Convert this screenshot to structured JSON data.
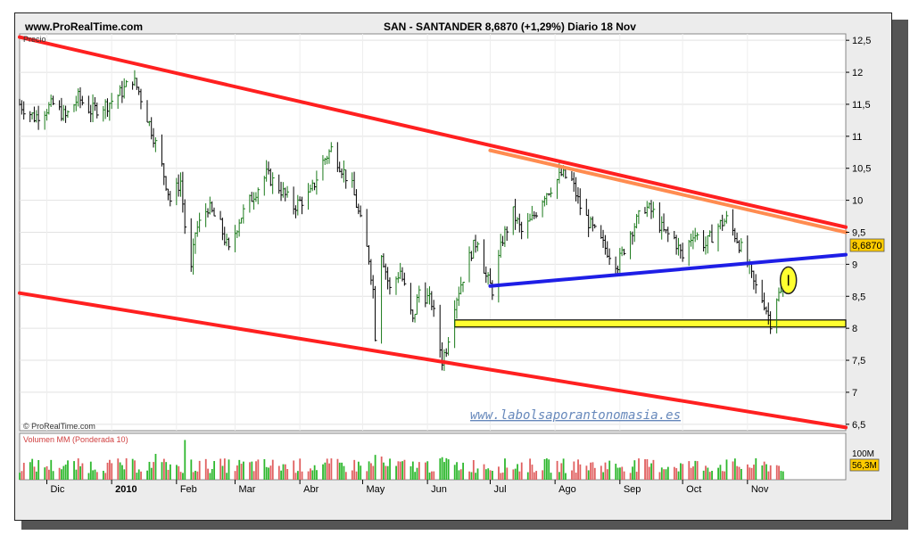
{
  "header": {
    "site": "www.ProRealTime.com",
    "quote": "SAN - SANTANDER    8,6870 (+1,29%)    Diario  18 Nov"
  },
  "chart_data": [
    {
      "type": "line",
      "title": "SAN - SANTANDER",
      "price_label": "Precio",
      "copyright": "© ProRealTime.com",
      "watermark": "www.labolsaporantonomasia.es",
      "last_price_label": "8,6870",
      "ylim": [
        6.4,
        12.6
      ],
      "y_ticks": [
        6.5,
        7,
        7.5,
        8,
        8.5,
        9,
        9.5,
        10,
        10.5,
        11,
        11.5,
        12,
        12.5
      ],
      "y_tick_labels": [
        "6,5",
        "7",
        "7,5",
        "8",
        "8,5",
        "9",
        "9,5",
        "10",
        "10,5",
        "11",
        "11,5",
        "12",
        "12,5"
      ],
      "x_months": [
        {
          "date": "2009-12-01",
          "label": "Dic"
        },
        {
          "date": "2010-01-01",
          "label": "2010",
          "bold": true
        },
        {
          "date": "2010-02-01",
          "label": "Feb"
        },
        {
          "date": "2010-03-01",
          "label": "Mar"
        },
        {
          "date": "2010-04-01",
          "label": "Abr"
        },
        {
          "date": "2010-05-01",
          "label": "May"
        },
        {
          "date": "2010-06-01",
          "label": "Jun"
        },
        {
          "date": "2010-07-01",
          "label": "Jul"
        },
        {
          "date": "2010-08-01",
          "label": "Ago"
        },
        {
          "date": "2010-09-01",
          "label": "Sep"
        },
        {
          "date": "2010-10-01",
          "label": "Oct"
        },
        {
          "date": "2010-11-01",
          "label": "Nov"
        }
      ],
      "xlim": [
        "2009-11-18",
        "2010-12-18"
      ],
      "series": [
        {
          "color": "#000000",
          "points": [
            [
              "2009-11-18",
              11.5
            ],
            [
              "2009-11-25",
              11.3
            ],
            [
              "2009-12-04",
              11.5
            ],
            [
              "2009-12-10",
              11.3
            ],
            [
              "2009-12-16",
              11.6
            ],
            [
              "2009-12-22",
              11.4
            ],
            [
              "2009-12-30",
              11.5
            ],
            [
              "2010-01-06",
              11.7
            ],
            [
              "2010-01-11",
              11.9
            ],
            [
              "2010-01-14",
              11.7
            ],
            [
              "2010-01-18",
              11.3
            ],
            [
              "2010-01-21",
              11.0
            ],
            [
              "2010-01-26",
              10.4
            ],
            [
              "2010-01-29",
              10.0
            ],
            [
              "2010-02-03",
              10.3
            ],
            [
              "2010-02-05",
              9.6
            ],
            [
              "2010-02-08",
              8.9
            ],
            [
              "2010-02-10",
              9.5
            ],
            [
              "2010-02-16",
              9.9
            ],
            [
              "2010-02-22",
              9.6
            ],
            [
              "2010-02-26",
              9.2
            ],
            [
              "2010-03-03",
              9.7
            ],
            [
              "2010-03-10",
              10.1
            ],
            [
              "2010-03-16",
              10.4
            ],
            [
              "2010-03-22",
              10.2
            ],
            [
              "2010-03-29",
              9.9
            ],
            [
              "2010-04-06",
              10.1
            ],
            [
              "2010-04-12",
              10.6
            ],
            [
              "2010-04-16",
              10.8
            ],
            [
              "2010-04-21",
              10.5
            ],
            [
              "2010-04-26",
              10.2
            ],
            [
              "2010-04-29",
              9.8
            ],
            [
              "2010-05-04",
              9.1
            ],
            [
              "2010-05-06",
              8.6
            ],
            [
              "2010-05-07",
              7.9
            ],
            [
              "2010-05-10",
              9.2
            ],
            [
              "2010-05-14",
              8.6
            ],
            [
              "2010-05-19",
              8.9
            ],
            [
              "2010-05-25",
              8.1
            ],
            [
              "2010-05-28",
              8.6
            ],
            [
              "2010-06-03",
              8.4
            ],
            [
              "2010-06-08",
              7.5
            ],
            [
              "2010-06-10",
              7.7
            ],
            [
              "2010-06-14",
              8.4
            ],
            [
              "2010-06-17",
              8.7
            ],
            [
              "2010-06-22",
              9.2
            ],
            [
              "2010-06-25",
              9.4
            ],
            [
              "2010-06-29",
              8.8
            ],
            [
              "2010-07-02",
              8.6
            ],
            [
              "2010-07-07",
              9.4
            ],
            [
              "2010-07-12",
              9.8
            ],
            [
              "2010-07-16",
              9.5
            ],
            [
              "2010-07-21",
              9.7
            ],
            [
              "2010-07-27",
              10.1
            ],
            [
              "2010-07-30",
              10.2
            ],
            [
              "2010-08-04",
              10.4
            ],
            [
              "2010-08-09",
              10.3
            ],
            [
              "2010-08-13",
              9.9
            ],
            [
              "2010-08-18",
              9.6
            ],
            [
              "2010-08-24",
              9.3
            ],
            [
              "2010-08-31",
              9.0
            ],
            [
              "2010-09-06",
              9.5
            ],
            [
              "2010-09-13",
              9.9
            ],
            [
              "2010-09-17",
              9.8
            ],
            [
              "2010-09-22",
              9.5
            ],
            [
              "2010-09-27",
              9.4
            ],
            [
              "2010-10-01",
              9.1
            ],
            [
              "2010-10-06",
              9.5
            ],
            [
              "2010-10-12",
              9.3
            ],
            [
              "2010-10-18",
              9.6
            ],
            [
              "2010-10-22",
              9.7
            ],
            [
              "2010-10-27",
              9.4
            ],
            [
              "2010-11-01",
              9.0
            ],
            [
              "2010-11-04",
              8.7
            ],
            [
              "2010-11-09",
              8.4
            ],
            [
              "2010-11-12",
              8.1
            ],
            [
              "2010-11-15",
              8.5
            ],
            [
              "2010-11-17",
              8.55
            ],
            [
              "2010-11-18",
              8.687
            ]
          ]
        }
      ],
      "trendlines": [
        {
          "name": "upper-channel",
          "color": "#ff2020",
          "width": 4,
          "from": [
            "2009-11-18",
            12.55
          ],
          "to": [
            "2010-12-18",
            9.58
          ]
        },
        {
          "name": "lower-channel",
          "color": "#ff2020",
          "width": 4,
          "from": [
            "2009-11-18",
            8.55
          ],
          "to": [
            "2010-12-18",
            6.45
          ]
        },
        {
          "name": "orange-resistance",
          "color": "#ff8c50",
          "width": 4,
          "from": [
            "2010-07-01",
            10.78
          ],
          "to": [
            "2010-12-18",
            9.5
          ]
        },
        {
          "name": "blue-support",
          "color": "#1e1ee6",
          "width": 4,
          "from": [
            "2010-07-01",
            8.66
          ],
          "to": [
            "2010-12-18",
            9.15
          ]
        }
      ],
      "support_zone": {
        "from": "2010-06-14",
        "to": "2010-12-18",
        "y_low": 8.02,
        "y_high": 8.13,
        "color": "#ffff30"
      },
      "highlight_ellipse": {
        "date": "2010-11-18",
        "y": 8.75,
        "color": "#ffff30"
      },
      "volume": {
        "title": "Volumen MM (Ponderada 10)",
        "tick_label": "100M",
        "last_label": "56,3M",
        "ylim": [
          0,
          140
        ],
        "bar_count": 245,
        "typical_million": 50,
        "spikes": [
          {
            "date": "2010-02-05",
            "value": 120
          },
          {
            "date": "2010-01-22",
            "value": 78
          },
          {
            "date": "2010-05-07",
            "value": 75
          },
          {
            "date": "2010-05-10",
            "value": 70
          },
          {
            "date": "2010-06-08",
            "value": 68
          },
          {
            "date": "2010-06-10",
            "value": 65
          }
        ],
        "colors": {
          "up": "#2eb82e",
          "down": "#e06060"
        }
      }
    }
  ]
}
